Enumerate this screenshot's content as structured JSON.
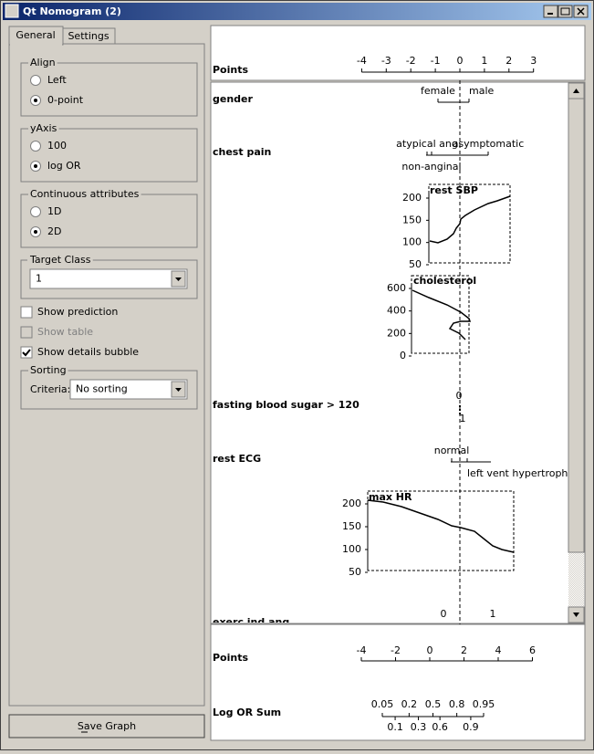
{
  "window": {
    "title": "Qt Nomogram (2)"
  },
  "tabs": [
    "General",
    "Settings"
  ],
  "groups": [
    {
      "title": "Align",
      "options": [
        "Left",
        "0-point"
      ],
      "selected": 1
    },
    {
      "title": "yAxis",
      "options": [
        "100",
        "log OR"
      ],
      "selected": 1
    },
    {
      "title": "Continuous attributes",
      "options": [
        "1D",
        "2D"
      ],
      "selected": 1
    }
  ],
  "target_class": {
    "title": "Target Class",
    "value": "1"
  },
  "checkboxes": [
    {
      "label": "Show prediction",
      "checked": false,
      "enabled": true
    },
    {
      "label": "Show table",
      "checked": false,
      "enabled": false
    },
    {
      "label": "Show details bubble",
      "checked": true,
      "enabled": true
    }
  ],
  "sorting": {
    "title": "Sorting",
    "label": "Criteria:",
    "value": "No sorting"
  },
  "save_button": "Save Graph",
  "header": {
    "label": "Points",
    "ticks": [
      -4,
      -3,
      -2,
      -1,
      0,
      1,
      2,
      3
    ]
  },
  "attributes": [
    {
      "name": "gender",
      "values": [
        "female",
        "male"
      ]
    },
    {
      "name": "chest pain",
      "values": [
        "atypical ang",
        "asymptomatic",
        "non-anginal"
      ]
    },
    {
      "name": "rest SBP",
      "ticks": [
        200,
        150,
        100,
        50
      ]
    },
    {
      "name": "cholesterol",
      "ticks": [
        600,
        400,
        200,
        0
      ]
    },
    {
      "name": "fasting blood sugar > 120",
      "values": [
        "0",
        "1"
      ]
    },
    {
      "name": "rest ECG",
      "values": [
        "normal",
        "left vent hypertrophy"
      ]
    },
    {
      "name": "max HR",
      "ticks": [
        200,
        150,
        100,
        50
      ]
    },
    {
      "name": "exerc ind ang",
      "values": [
        "0",
        "1"
      ]
    }
  ],
  "footer": {
    "points": {
      "label": "Points",
      "ticks": [
        -4,
        -2,
        0,
        2,
        4,
        6
      ]
    },
    "log_or_sum": {
      "label": "Log OR Sum",
      "ticks": [
        0.05,
        0.1,
        0.2,
        0.3,
        0.5,
        0.6,
        0.8,
        0.9,
        0.95
      ]
    }
  }
}
